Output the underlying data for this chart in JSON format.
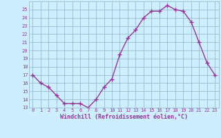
{
  "hours": [
    0,
    1,
    2,
    3,
    4,
    5,
    6,
    7,
    8,
    9,
    10,
    11,
    12,
    13,
    14,
    15,
    16,
    17,
    18,
    19,
    20,
    21,
    22,
    23
  ],
  "values": [
    17,
    16,
    15.5,
    14.5,
    13.5,
    13.5,
    13.5,
    13,
    14,
    15.5,
    16.5,
    19.5,
    21.5,
    22.5,
    24,
    24.8,
    24.8,
    25.5,
    25,
    24.8,
    23.5,
    21,
    18.5,
    17
  ],
  "line_color": "#993399",
  "marker": "+",
  "marker_size": 4,
  "line_width": 1.0,
  "bg_color": "#cceeff",
  "grid_color": "#99bbcc",
  "xlabel": "Windchill (Refroidissement éolien,°C)",
  "xlabel_color": "#993399",
  "tick_color": "#993399",
  "ylim": [
    13,
    26
  ],
  "yticks": [
    13,
    14,
    15,
    16,
    17,
    18,
    19,
    20,
    21,
    22,
    23,
    24,
    25
  ],
  "xlim": [
    -0.5,
    23.5
  ],
  "tick_fontsize": 5.0,
  "xlabel_fontsize": 6.0
}
